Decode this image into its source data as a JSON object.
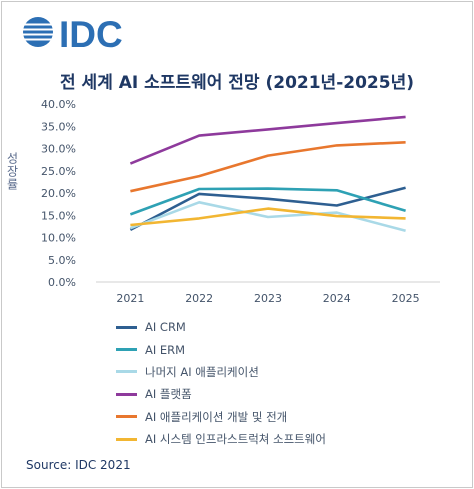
{
  "logo": {
    "text": "IDC",
    "color": "#2c6fb4",
    "icon": "idc-globe-icon"
  },
  "source": "Source: IDC 2021",
  "chart_data": {
    "type": "line",
    "title": "전 세계 AI 소프트웨어 전망 (2021년-2025년)",
    "xlabel": "",
    "ylabel": "성장률",
    "x": [
      "2021",
      "2022",
      "2023",
      "2024",
      "2025"
    ],
    "ylim": [
      0,
      40
    ],
    "yticks": [
      0,
      5,
      10,
      15,
      20,
      25,
      30,
      35,
      40
    ],
    "ytick_labels": [
      "0.0%",
      "5.0%",
      "10.0%",
      "15.0%",
      "20.0%",
      "25.0%",
      "30.0%",
      "35.0%",
      "40.0%"
    ],
    "grid": false,
    "legend_position": "bottom",
    "series": [
      {
        "name": "AI CRM",
        "color": "#2e5f91",
        "values": [
          11.7,
          19.8,
          18.7,
          17.2,
          21.2
        ]
      },
      {
        "name": "AI ERM",
        "color": "#2ea1b4",
        "values": [
          15.2,
          20.9,
          21.0,
          20.6,
          16.0
        ]
      },
      {
        "name": "나머지 AI 애플리케이션",
        "color": "#a9d9e7",
        "values": [
          12.1,
          17.9,
          14.6,
          15.6,
          11.5
        ]
      },
      {
        "name": "AI 플랫폼",
        "color": "#8e3a9c",
        "values": [
          26.6,
          32.9,
          34.3,
          35.7,
          37.1
        ]
      },
      {
        "name": "AI 애플리케이션 개발 및 전개",
        "color": "#e8772e",
        "values": [
          20.4,
          23.8,
          28.4,
          30.7,
          31.4
        ]
      },
      {
        "name": "AI 시스템 인프라스트럭쳐 소프트웨어",
        "color": "#f2b632",
        "values": [
          12.8,
          14.3,
          16.5,
          14.8,
          14.3
        ]
      }
    ]
  }
}
